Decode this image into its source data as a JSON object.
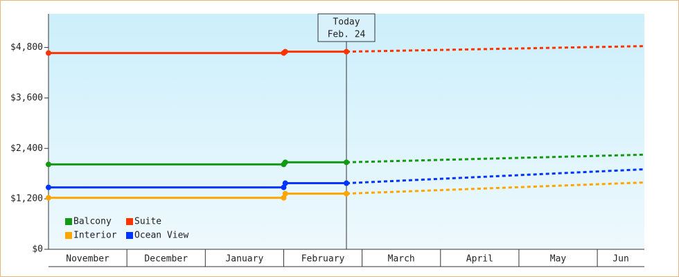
{
  "chart_data": {
    "type": "line",
    "categories": [
      "November",
      "December",
      "January",
      "February",
      "March",
      "April",
      "May",
      "Jun"
    ],
    "x": [
      0,
      3.0,
      3.02,
      3.8,
      7.6
    ],
    "xlim": [
      0,
      7.6
    ],
    "ylim": [
      0,
      5600
    ],
    "yticks": [
      {
        "value": 0,
        "label": "$0"
      },
      {
        "value": 1200,
        "label": "$1,200"
      },
      {
        "value": 2400,
        "label": "$2,400"
      },
      {
        "value": 3600,
        "label": "$3,600"
      },
      {
        "value": 4800,
        "label": "$4,800"
      }
    ],
    "series": [
      {
        "name": "Balcony",
        "color": "#149914",
        "values": [
          2019,
          2019,
          2069,
          2069,
          null
        ],
        "forecast": [
          null,
          null,
          null,
          2069,
          2251
        ]
      },
      {
        "name": "Suite",
        "color": "#ff3300",
        "values": [
          4668,
          4668,
          4700,
          4700,
          null
        ],
        "forecast": [
          null,
          null,
          null,
          4700,
          4833
        ]
      },
      {
        "name": "Interior",
        "color": "#ffa500",
        "values": [
          1225,
          1225,
          1324,
          1324,
          null
        ],
        "forecast": [
          null,
          null,
          null,
          1324,
          1589
        ]
      },
      {
        "name": "Ocean View",
        "color": "#0033ff",
        "values": [
          1473,
          1473,
          1572,
          1572,
          null
        ],
        "forecast": [
          null,
          null,
          null,
          1572,
          1903
        ]
      }
    ],
    "annotations": [
      {
        "x": 3.8,
        "label": "Today",
        "sublabel": "Feb. 24"
      }
    ]
  }
}
